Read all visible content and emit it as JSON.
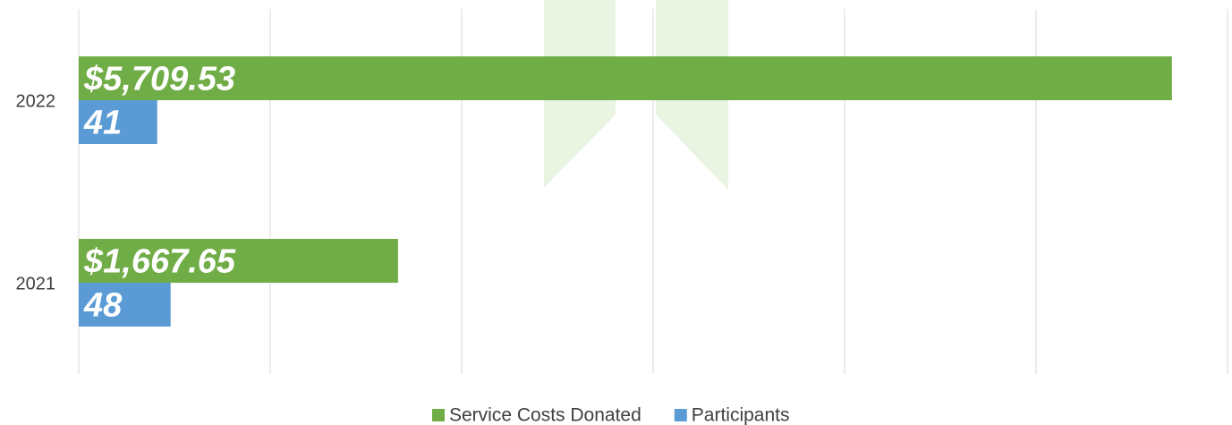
{
  "chart_data": {
    "type": "hbar",
    "categories": [
      "2022",
      "2021"
    ],
    "series": [
      {
        "name": "Service Costs Donated",
        "color": "#70ad47",
        "axis": "x2",
        "values": [
          5709.53,
          1667.65
        ],
        "value_labels": [
          "$5,709.53",
          "$1,667.65"
        ]
      },
      {
        "name": "Participants",
        "color": "#5b9bd5",
        "values": [
          41,
          48
        ]
      }
    ],
    "xlim": [
      0,
      600
    ],
    "xticks": [
      0,
      100,
      200,
      300,
      400,
      500,
      600
    ],
    "x2lim": [
      0,
      6000
    ],
    "grid": true,
    "legend": "bottom"
  }
}
